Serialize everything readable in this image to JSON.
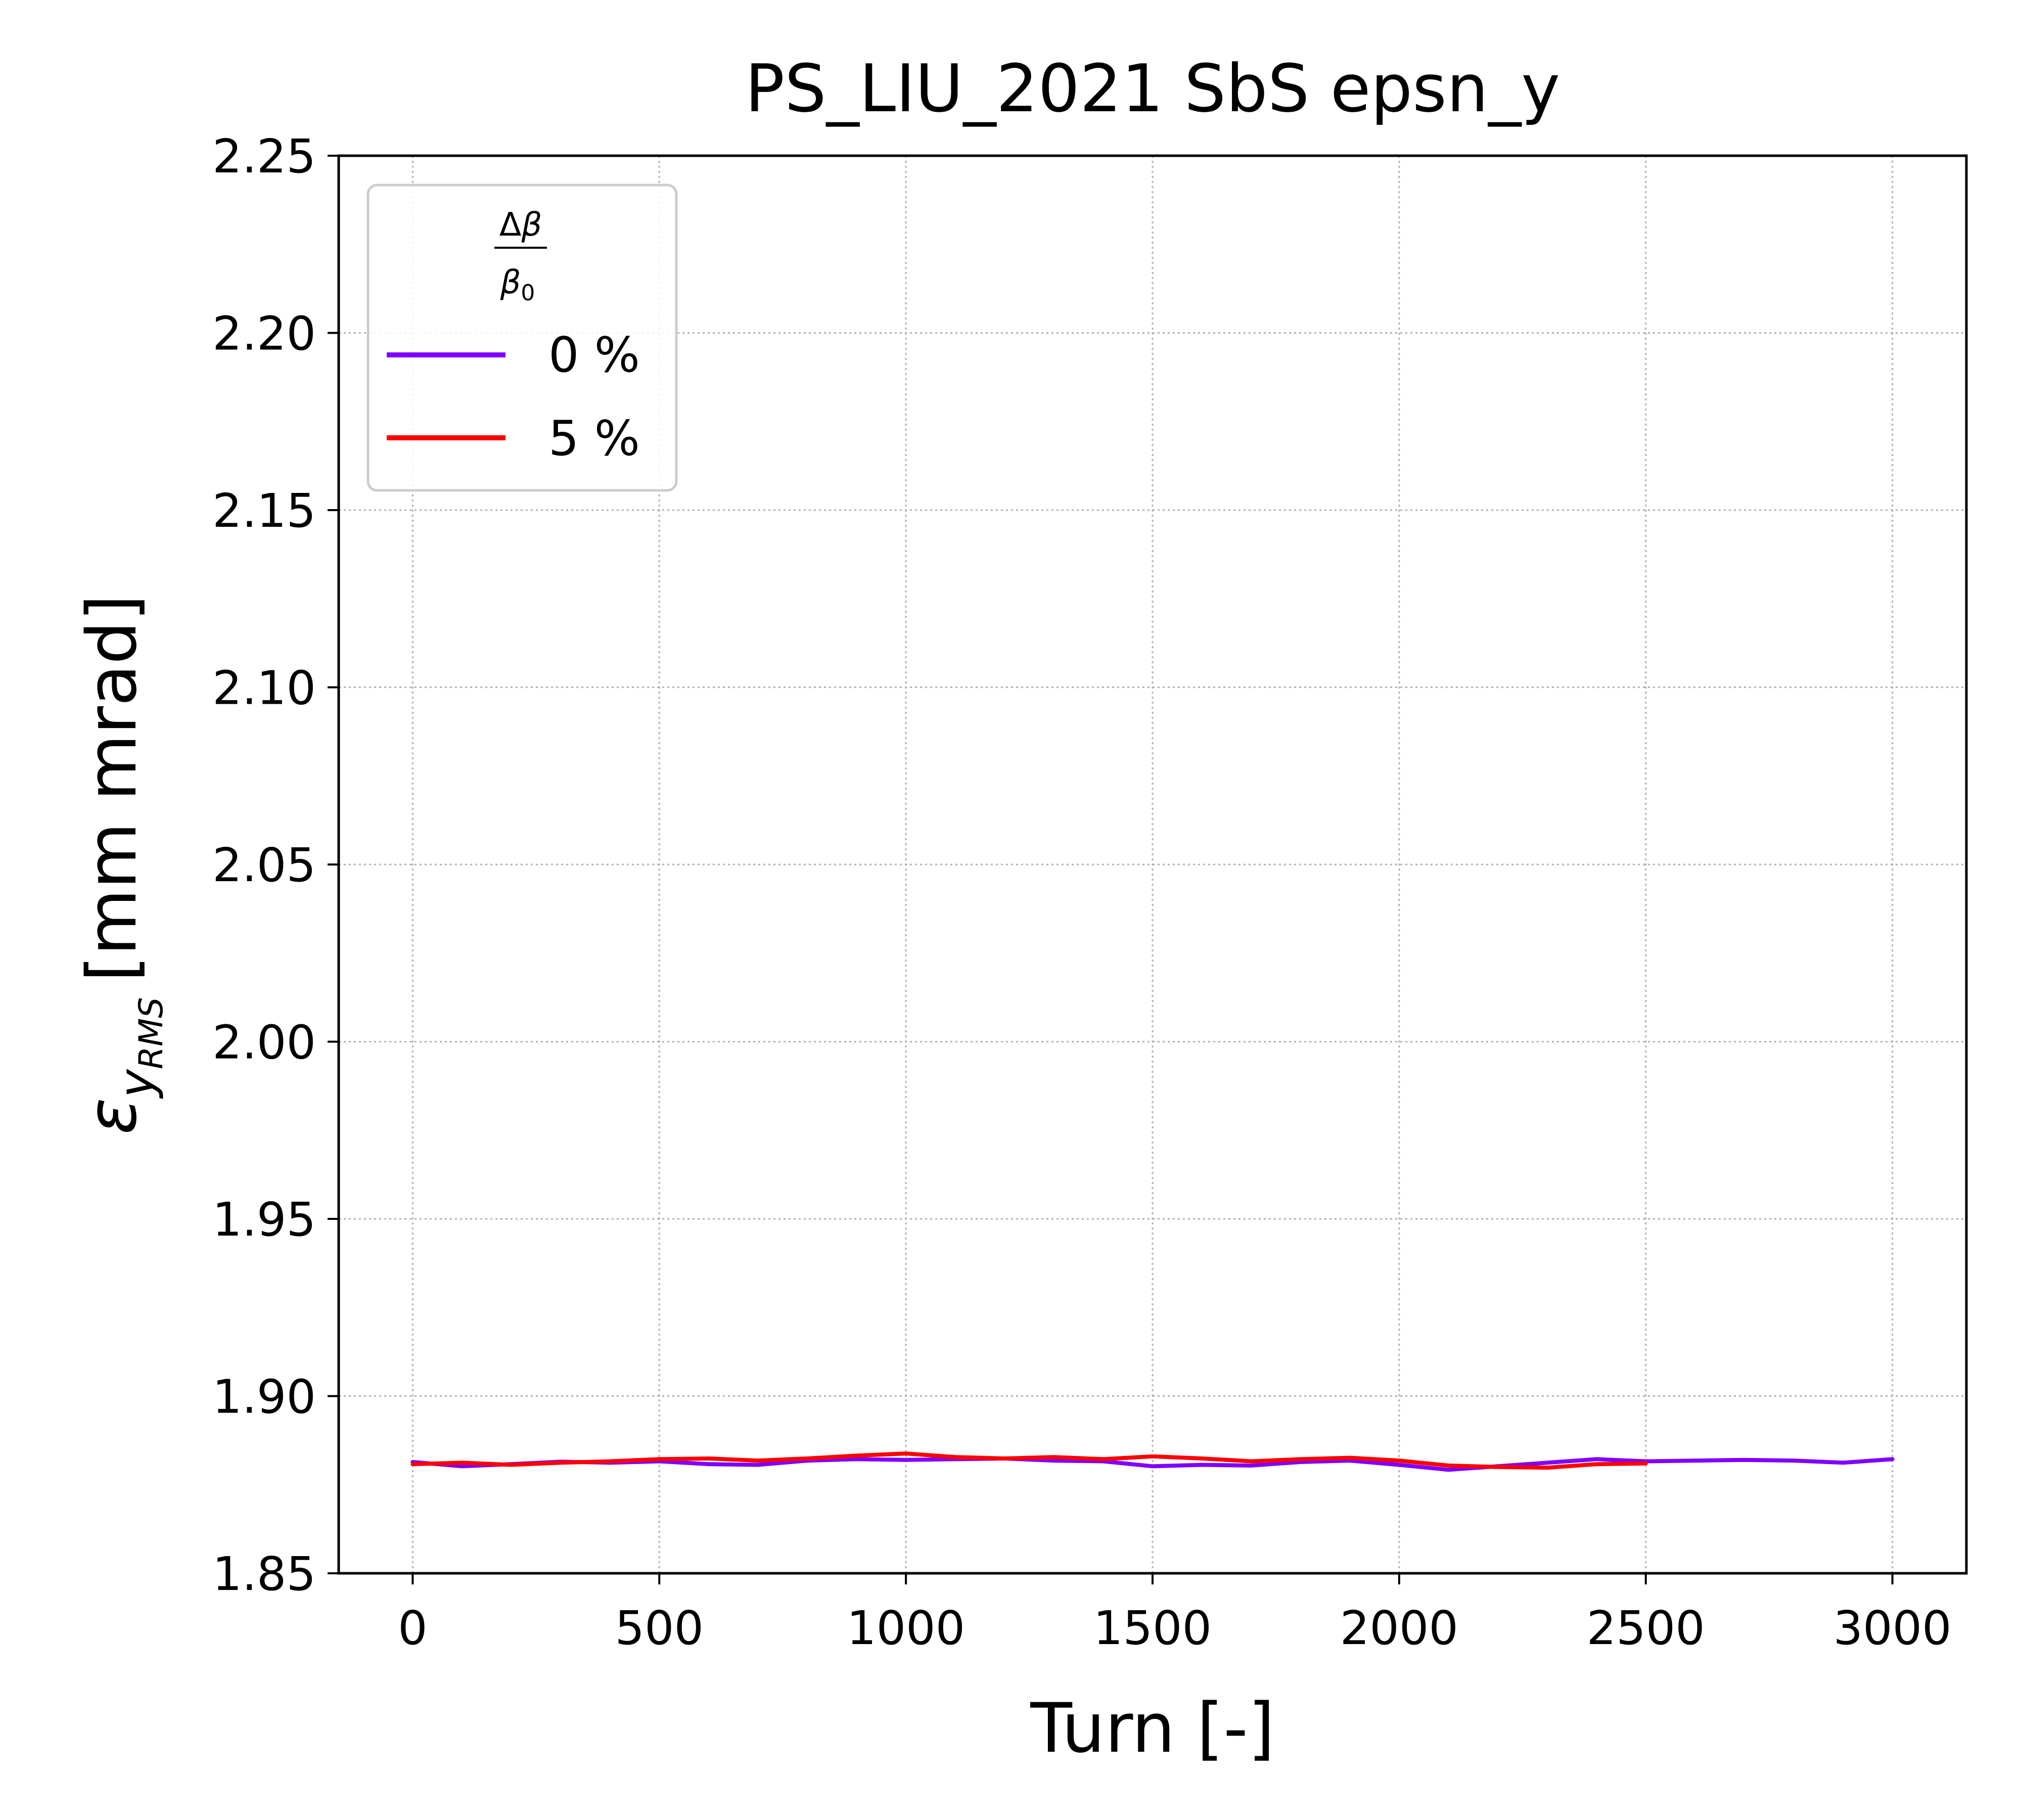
{
  "chart_data": {
    "type": "line",
    "title": "PS_LIU_2021 SbS epsn_y",
    "xlabel": "Turn [-]",
    "ylabel": {
      "symbol": "ε",
      "sub": "y",
      "subsub": "RMS",
      "unit": "[mm mrad]"
    },
    "xlim": [
      -150,
      3150
    ],
    "ylim": [
      1.85,
      2.25
    ],
    "xticks": [
      0,
      500,
      1000,
      1500,
      2000,
      2500,
      3000
    ],
    "xtick_labels": [
      "0",
      "500",
      "1000",
      "1500",
      "2000",
      "2500",
      "3000"
    ],
    "yticks": [
      1.85,
      1.9,
      1.95,
      2.0,
      2.05,
      2.1,
      2.15,
      2.2,
      2.25
    ],
    "ytick_labels": [
      "1.85",
      "1.90",
      "1.95",
      "2.00",
      "2.05",
      "2.10",
      "2.15",
      "2.20",
      "2.25"
    ],
    "grid": true,
    "legend": {
      "placement": "top-left",
      "title": {
        "num_delta": "Δ",
        "num_beta": "β",
        "den_beta": "β",
        "den_sub": "0"
      }
    },
    "series": [
      {
        "name": "0 %",
        "color": "#8000ff",
        "x": [
          0,
          100,
          200,
          300,
          400,
          500,
          600,
          700,
          800,
          900,
          1000,
          1100,
          1200,
          1300,
          1400,
          1500,
          1600,
          1700,
          1800,
          1900,
          2000,
          2100,
          2200,
          2300,
          2400,
          2500,
          2600,
          2700,
          2800,
          2900,
          3000
        ],
        "y": [
          1.8814,
          1.8802,
          1.8808,
          1.8815,
          1.8812,
          1.8816,
          1.8808,
          1.8806,
          1.8818,
          1.8822,
          1.882,
          1.8822,
          1.8824,
          1.8818,
          1.8816,
          1.8802,
          1.8806,
          1.8804,
          1.8814,
          1.8818,
          1.8806,
          1.8792,
          1.8802,
          1.8812,
          1.8822,
          1.8816,
          1.8818,
          1.882,
          1.8818,
          1.8812,
          1.8822
        ]
      },
      {
        "name": "5 %",
        "color": "#ff0000",
        "x": [
          0,
          100,
          200,
          300,
          400,
          500,
          600,
          700,
          800,
          900,
          1000,
          1100,
          1200,
          1300,
          1400,
          1500,
          1600,
          1700,
          1800,
          1900,
          2000,
          2100,
          2200,
          2300,
          2400,
          2500
        ],
        "y": [
          1.8808,
          1.8812,
          1.8806,
          1.8812,
          1.8816,
          1.8822,
          1.8824,
          1.8818,
          1.8824,
          1.8832,
          1.8838,
          1.8828,
          1.8824,
          1.8828,
          1.8822,
          1.883,
          1.8824,
          1.8816,
          1.8822,
          1.8826,
          1.8818,
          1.8804,
          1.88,
          1.8798,
          1.8808,
          1.881
        ]
      }
    ]
  }
}
